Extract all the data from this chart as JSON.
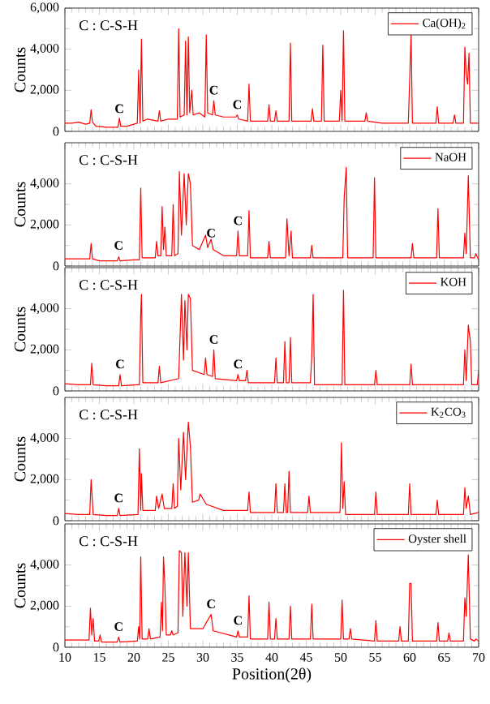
{
  "chart_data": [
    {
      "type": "line",
      "ylabel": "Counts",
      "xlim": [
        10,
        70
      ],
      "ylim": [
        0,
        6000
      ],
      "xticks": [
        10,
        15,
        20,
        25,
        30,
        35,
        40,
        45,
        50,
        55,
        60,
        65,
        70
      ],
      "yticks": [
        0,
        {
          "value": 2000,
          "label": "2,000"
        },
        {
          "value": 4000,
          "label": "4,000"
        },
        {
          "value": 6000,
          "label": "6,000"
        }
      ],
      "tick_labels": "y",
      "legend": "top right",
      "line_style": "solid",
      "annotations": [
        "C : C-S-H",
        {
          "text": "C",
          "x": 17.9,
          "y": 800
        },
        {
          "text": "C",
          "x": 31.6,
          "y": 1700
        },
        {
          "text": "C",
          "x": 35,
          "y": 1000
        }
      ],
      "series": [
        {
          "name": "Ca(OH)$_{2}$",
          "color": "#ff0000",
          "x": [
            10,
            11,
            12,
            13,
            13.6,
            13.8,
            14,
            14.5,
            16,
            17.7,
            17.9,
            18.1,
            19,
            20.5,
            20.7,
            20.9,
            21.1,
            21.3,
            22,
            23.5,
            23.7,
            23.9,
            25,
            26.3,
            26.5,
            26.7,
            27.3,
            27.5,
            27.7,
            27.9,
            28.1,
            28.4,
            28.6,
            29.5,
            30.3,
            30.5,
            30.7,
            31.4,
            31.6,
            31.8,
            33,
            34.8,
            35,
            35.2,
            36.5,
            36.7,
            36.9,
            38,
            39.4,
            39.6,
            39.8,
            40.4,
            40.6,
            40.8,
            42.5,
            42.7,
            42.9,
            44,
            45.7,
            45.9,
            46.1,
            47.2,
            47.4,
            47.6,
            48.5,
            49.8,
            50,
            50.2,
            50.4,
            50.6,
            52,
            53.5,
            53.7,
            53.9,
            56,
            58,
            59.8,
            60.2,
            60.4,
            62,
            63.8,
            64,
            64.2,
            66.3,
            66.5,
            66.7,
            67.8,
            68,
            68.2,
            68.4,
            68.6,
            68.8,
            69.4,
            70
          ],
          "values": [
            400,
            400,
            450,
            350,
            400,
            1050,
            450,
            250,
            200,
            200,
            650,
            250,
            250,
            400,
            3000,
            400,
            4500,
            500,
            600,
            500,
            1000,
            500,
            600,
            600,
            5000,
            700,
            800,
            4400,
            800,
            4600,
            900,
            2000,
            800,
            900,
            700,
            4700,
            900,
            800,
            1500,
            800,
            700,
            700,
            800,
            600,
            500,
            2300,
            500,
            500,
            500,
            1300,
            500,
            500,
            1000,
            500,
            500,
            4300,
            500,
            500,
            500,
            1100,
            500,
            500,
            4200,
            500,
            500,
            500,
            2000,
            500,
            4900,
            500,
            500,
            500,
            900,
            500,
            400,
            400,
            400,
            4700,
            400,
            400,
            400,
            1200,
            400,
            400,
            800,
            400,
            400,
            4100,
            2800,
            2300,
            3800,
            400,
            400,
            400
          ]
        }
      ]
    },
    {
      "type": "line",
      "ylabel": "Counts",
      "xlim": [
        10,
        70
      ],
      "ylim": [
        0,
        6000
      ],
      "xticks": [
        10,
        15,
        20,
        25,
        30,
        35,
        40,
        45,
        50,
        55,
        60,
        65,
        70
      ],
      "yticks": [
        0,
        {
          "value": 2000,
          "label": "2,000"
        },
        {
          "value": 4000,
          "label": "4,000"
        }
      ],
      "tick_labels": "y",
      "legend": "top right",
      "line_style": "solid",
      "annotations": [
        "C : C-S-H",
        {
          "text": "C",
          "x": 17.8,
          "y": 700
        },
        {
          "text": "C",
          "x": 31.2,
          "y": 1300
        },
        {
          "text": "C",
          "x": 35.1,
          "y": 1900
        }
      ],
      "series": [
        {
          "name": "NaOH",
          "color": "#ff0000",
          "x": [
            10,
            12,
            13.6,
            13.8,
            14,
            15,
            17.6,
            17.8,
            18,
            20,
            20.8,
            21,
            21.2,
            23.1,
            23.3,
            23.5,
            23.9,
            24.1,
            24.3,
            24.5,
            24.7,
            25.5,
            25.7,
            25.9,
            26.4,
            26.6,
            26.9,
            27.3,
            27.6,
            27.9,
            28.2,
            28.5,
            29.5,
            30.4,
            30.7,
            31.2,
            31.5,
            33,
            34.9,
            35.1,
            35.3,
            36.5,
            36.7,
            36.9,
            39.4,
            39.6,
            39.8,
            42,
            42.2,
            42.5,
            42.8,
            43,
            45.6,
            45.8,
            46,
            50.3,
            50.5,
            50.8,
            51,
            54.7,
            54.9,
            55.1,
            60.2,
            60.4,
            60.6,
            63.9,
            64.1,
            64.3,
            67.8,
            68,
            68.2,
            68.5,
            68.8,
            69.4,
            69.6,
            70
          ],
          "values": [
            350,
            350,
            350,
            1100,
            350,
            250,
            250,
            450,
            250,
            300,
            300,
            3800,
            400,
            400,
            1200,
            500,
            500,
            2900,
            800,
            1900,
            500,
            500,
            3000,
            500,
            600,
            4600,
            1500,
            4500,
            2000,
            4500,
            4000,
            1000,
            800,
            1500,
            900,
            1300,
            800,
            500,
            500,
            1700,
            500,
            500,
            2700,
            400,
            400,
            1200,
            400,
            400,
            2300,
            500,
            1700,
            400,
            400,
            1000,
            400,
            400,
            3300,
            4800,
            400,
            400,
            4300,
            400,
            400,
            1100,
            400,
            400,
            2800,
            400,
            400,
            1600,
            600,
            4400,
            400,
            400,
            600,
            300
          ]
        }
      ]
    },
    {
      "type": "line",
      "ylabel": "Counts",
      "xlim": [
        10,
        70
      ],
      "ylim": [
        0,
        6000
      ],
      "xticks": [
        10,
        15,
        20,
        25,
        30,
        35,
        40,
        45,
        50,
        55,
        60,
        65,
        70
      ],
      "yticks": [
        0,
        {
          "value": 2000,
          "label": "2,000"
        },
        {
          "value": 4000,
          "label": "4,000"
        }
      ],
      "tick_labels": "y",
      "legend": "top right",
      "line_style": "solid",
      "annotations": [
        "C : C-S-H",
        {
          "text": "C",
          "x": 18,
          "y": 1000
        },
        {
          "text": "C",
          "x": 31.6,
          "y": 2200
        },
        {
          "text": "C",
          "x": 35.1,
          "y": 1000
        }
      ],
      "series": [
        {
          "name": "KOH",
          "color": "#ff0000",
          "x": [
            10,
            12,
            13.7,
            13.9,
            14.1,
            16,
            17.8,
            18,
            18.2,
            20.5,
            20.8,
            21,
            21.1,
            21.3,
            23.5,
            23.7,
            23.9,
            26.5,
            26.9,
            27.2,
            27.4,
            27.7,
            27.9,
            28.2,
            28.5,
            30.2,
            30.4,
            30.6,
            31.4,
            31.6,
            31.8,
            34.9,
            35.1,
            35.3,
            36.2,
            36.4,
            36.6,
            40.4,
            40.6,
            40.8,
            41.7,
            41.9,
            42.1,
            42.5,
            42.7,
            42.9,
            45.6,
            45.8,
            46,
            46.2,
            50.2,
            50.4,
            50.6,
            54.9,
            55.1,
            55.3,
            60,
            60.2,
            60.4,
            67.8,
            68,
            68.2,
            68.5,
            68.8,
            69,
            69.8,
            70
          ],
          "values": [
            350,
            300,
            300,
            1350,
            300,
            250,
            250,
            800,
            250,
            300,
            300,
            3800,
            4700,
            400,
            400,
            1200,
            400,
            600,
            4700,
            1500,
            4400,
            2000,
            4700,
            4500,
            1000,
            800,
            1600,
            800,
            700,
            2000,
            600,
            500,
            800,
            500,
            500,
            1000,
            400,
            400,
            1600,
            400,
            400,
            2400,
            400,
            400,
            2600,
            400,
            400,
            1700,
            4700,
            300,
            300,
            4900,
            300,
            300,
            1000,
            300,
            300,
            1300,
            300,
            300,
            2000,
            500,
            3200,
            2400,
            300,
            300,
            1000
          ]
        }
      ]
    },
    {
      "type": "line",
      "ylabel": "Counts",
      "xlim": [
        10,
        70
      ],
      "ylim": [
        0,
        6000
      ],
      "xticks": [
        10,
        15,
        20,
        25,
        30,
        35,
        40,
        45,
        50,
        55,
        60,
        65,
        70
      ],
      "yticks": [
        0,
        {
          "value": 2000,
          "label": "2,000"
        },
        {
          "value": 4000,
          "label": "4,000"
        }
      ],
      "tick_labels": "y",
      "legend": "top right",
      "line_style": "solid",
      "annotations": [
        "C : C-S-H",
        {
          "text": "C",
          "x": 17.8,
          "y": 800
        }
      ],
      "series": [
        {
          "name": "K$_{2}$CO$_{3}$",
          "color": "#ff0000",
          "x": [
            10,
            12,
            13.6,
            13.8,
            14.1,
            16,
            17.6,
            17.8,
            18,
            20.6,
            20.8,
            21,
            21.1,
            21.3,
            23.1,
            23.3,
            23.6,
            24.1,
            24.4,
            25.5,
            25.7,
            25.9,
            26.3,
            26.5,
            26.8,
            27.2,
            27.5,
            27.9,
            28.2,
            28.5,
            29.4,
            29.6,
            30.5,
            33,
            36.5,
            36.7,
            36.9,
            40.4,
            40.6,
            40.8,
            41.7,
            41.9,
            42.1,
            42.3,
            42.5,
            42.7,
            45.2,
            45.4,
            45.6,
            49.9,
            50.1,
            50.3,
            50.5,
            50.7,
            54.9,
            55.1,
            55.3,
            59.8,
            60,
            60.2,
            63.8,
            64,
            64.2,
            67.8,
            68,
            68.2,
            68.5,
            68.8,
            70
          ],
          "values": [
            350,
            300,
            300,
            2000,
            300,
            250,
            250,
            600,
            250,
            300,
            3500,
            500,
            2300,
            500,
            500,
            1200,
            600,
            1300,
            600,
            600,
            1800,
            600,
            700,
            4000,
            1500,
            4300,
            2000,
            4800,
            3600,
            900,
            1000,
            1300,
            800,
            500,
            500,
            1400,
            400,
            400,
            1800,
            400,
            400,
            1800,
            400,
            400,
            2400,
            400,
            400,
            1200,
            400,
            400,
            3800,
            600,
            1900,
            300,
            300,
            1400,
            300,
            300,
            1800,
            300,
            300,
            1000,
            300,
            300,
            1600,
            600,
            1200,
            300,
            400
          ]
        }
      ]
    },
    {
      "type": "line",
      "ylabel": "Counts",
      "xlabel": "Position(2θ)",
      "xlim": [
        10,
        70
      ],
      "ylim": [
        0,
        6000
      ],
      "xticks": [
        10,
        15,
        20,
        25,
        30,
        35,
        40,
        45,
        50,
        55,
        60,
        65,
        70
      ],
      "yticks": [
        0,
        {
          "value": 2000,
          "label": "2,000"
        },
        {
          "value": 4000,
          "label": "4,000"
        }
      ],
      "legend": "top right",
      "line_style": "solid",
      "annotations": [
        "C : C-S-H",
        {
          "text": "C",
          "x": 17.8,
          "y": 700
        },
        {
          "text": "C",
          "x": 31.2,
          "y": 1800
        },
        {
          "text": "C",
          "x": 35.1,
          "y": 1000
        }
      ],
      "series": [
        {
          "name": "Oyster shell",
          "color": "#ff0000",
          "x": [
            10,
            12,
            13.5,
            13.7,
            13.9,
            14.1,
            14.3,
            14.9,
            15.1,
            15.3,
            17.6,
            17.8,
            18,
            20.5,
            20.7,
            20.85,
            21,
            21.2,
            22,
            22.2,
            22.4,
            23.8,
            24,
            24.15,
            24.3,
            24.5,
            24.7,
            25.3,
            25.5,
            25.7,
            26.4,
            26.6,
            26.9,
            27.1,
            27.4,
            27.7,
            27.9,
            28.2,
            30,
            31.2,
            31.5,
            34.9,
            35.1,
            35.3,
            36.5,
            36.7,
            36.9,
            39.4,
            39.6,
            39.8,
            40.4,
            40.6,
            40.8,
            42.5,
            42.7,
            42.9,
            45.6,
            45.8,
            46,
            50,
            50.2,
            50.4,
            51.2,
            51.4,
            51.6,
            54.9,
            55.1,
            55.3,
            58.4,
            58.6,
            58.8,
            59.8,
            60,
            60.2,
            60.4,
            63.9,
            64.1,
            64.3,
            65.5,
            65.7,
            65.9,
            67.8,
            68,
            68.2,
            68.5,
            68.8,
            69.4,
            69.6,
            70
          ],
          "values": [
            350,
            350,
            350,
            1900,
            600,
            1400,
            300,
            300,
            600,
            250,
            250,
            500,
            250,
            300,
            1000,
            400,
            4400,
            400,
            400,
            900,
            400,
            500,
            2200,
            800,
            4400,
            3000,
            600,
            600,
            800,
            600,
            700,
            4700,
            4600,
            1500,
            4600,
            2000,
            4600,
            900,
            900,
            1600,
            800,
            500,
            800,
            500,
            500,
            2500,
            400,
            400,
            2200,
            400,
            400,
            1400,
            400,
            400,
            2000,
            400,
            400,
            2100,
            400,
            400,
            2300,
            400,
            400,
            900,
            400,
            300,
            1300,
            300,
            300,
            1000,
            300,
            300,
            3100,
            3100,
            300,
            300,
            1200,
            300,
            300,
            700,
            300,
            300,
            2400,
            1500,
            4500,
            400,
            300,
            400,
            300
          ]
        }
      ]
    }
  ]
}
